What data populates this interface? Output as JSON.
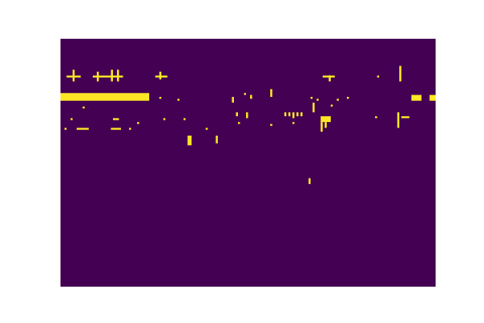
{
  "chart_data": {
    "type": "heatmap",
    "xlim": [
      -0.5,
      185.5
    ],
    "ylim": [
      -0.5,
      127.5
    ],
    "tick_labels": false,
    "grid": false,
    "zlim": [
      0,
      1
    ],
    "colors": [
      "#440154",
      "#fde725"
    ],
    "cells": [
      [
        3,
        9,
        19,
        19,
        1
      ],
      [
        6,
        6,
        16,
        21,
        1
      ],
      [
        16,
        21,
        19,
        19,
        1
      ],
      [
        18,
        18,
        17,
        21,
        1
      ],
      [
        22,
        30,
        19,
        19,
        1
      ],
      [
        25,
        25,
        16,
        21,
        1
      ],
      [
        28,
        28,
        16,
        21,
        1
      ],
      [
        47,
        52,
        19,
        19,
        1
      ],
      [
        49,
        49,
        17,
        20,
        1
      ],
      [
        130,
        135,
        19,
        19,
        1
      ],
      [
        133,
        133,
        19,
        21,
        1
      ],
      [
        157,
        157,
        19,
        19,
        1
      ],
      [
        168,
        168,
        14,
        21,
        1
      ],
      [
        0,
        43,
        28,
        31,
        1
      ],
      [
        174,
        178,
        29,
        31,
        1
      ],
      [
        183,
        185,
        29,
        31,
        1
      ],
      [
        49,
        49,
        30,
        30,
        1
      ],
      [
        58,
        58,
        31,
        31,
        1
      ],
      [
        85,
        85,
        30,
        32,
        1
      ],
      [
        91,
        91,
        28,
        28,
        1
      ],
      [
        94,
        94,
        29,
        30,
        1
      ],
      [
        104,
        104,
        26,
        29,
        1
      ],
      [
        124,
        124,
        30,
        30,
        1
      ],
      [
        125,
        125,
        33,
        37,
        1
      ],
      [
        127,
        127,
        31,
        31,
        1
      ],
      [
        134,
        134,
        34,
        34,
        1
      ],
      [
        137,
        137,
        31,
        31,
        1
      ],
      [
        142,
        142,
        30,
        30,
        1
      ],
      [
        87,
        87,
        38,
        39,
        1
      ],
      [
        92,
        92,
        38,
        40,
        1
      ],
      [
        111,
        111,
        38,
        39,
        1
      ],
      [
        113,
        113,
        38,
        39,
        1
      ],
      [
        115,
        115,
        38,
        40,
        1
      ],
      [
        117,
        117,
        38,
        39,
        1
      ],
      [
        119,
        119,
        38,
        39,
        1
      ],
      [
        129,
        133,
        40,
        42,
        1
      ],
      [
        129,
        129,
        43,
        47,
        1
      ],
      [
        131,
        131,
        43,
        45,
        1
      ],
      [
        156,
        156,
        40,
        40,
        1
      ],
      [
        167,
        167,
        38,
        45,
        1
      ],
      [
        169,
        172,
        40,
        40,
        1
      ],
      [
        5,
        5,
        41,
        41,
        1
      ],
      [
        11,
        11,
        35,
        35,
        1
      ],
      [
        26,
        28,
        41,
        41,
        1
      ],
      [
        38,
        38,
        43,
        43,
        1
      ],
      [
        51,
        51,
        41,
        41,
        1
      ],
      [
        61,
        61,
        41,
        41,
        1
      ],
      [
        2,
        2,
        46,
        46,
        1
      ],
      [
        8,
        13,
        46,
        46,
        1
      ],
      [
        25,
        29,
        46,
        46,
        1
      ],
      [
        34,
        34,
        46,
        46,
        1
      ],
      [
        72,
        72,
        46,
        46,
        1
      ],
      [
        63,
        64,
        50,
        54,
        1
      ],
      [
        77,
        77,
        50,
        53,
        1
      ],
      [
        88,
        88,
        43,
        43,
        1
      ],
      [
        104,
        104,
        44,
        44,
        1
      ],
      [
        115,
        115,
        43,
        43,
        1
      ],
      [
        123,
        123,
        72,
        74,
        1
      ]
    ]
  }
}
